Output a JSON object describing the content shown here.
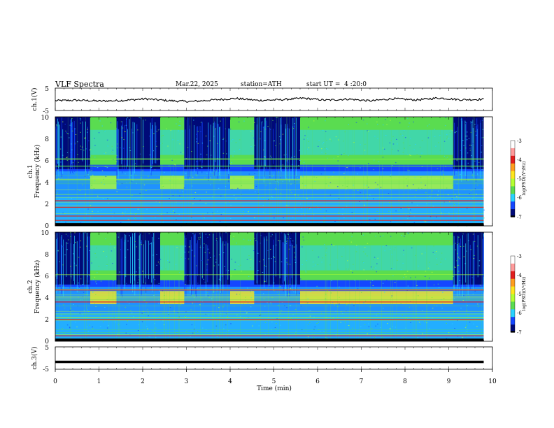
{
  "header": {
    "title": "VLF Spectra",
    "date": "Mar.22, 2025",
    "station": "station=ATH",
    "start": "start UT =  4 :20:0"
  },
  "chart_data": [
    {
      "type": "line",
      "ylabel": "ch.1(V)",
      "xlim": [
        0,
        10
      ],
      "ylim": [
        -5,
        5
      ],
      "yticks": [
        "5",
        "-5"
      ],
      "series": [
        {
          "values": [
            -0.6,
            -0.4,
            -0.8,
            -0.5,
            0.2,
            -0.6,
            -1.0,
            -0.3,
            0.4,
            -0.5,
            -0.2,
            0.5,
            -0.4,
            0.1,
            -0.7,
            0.3,
            -0.3,
            0.6,
            -0.2,
            0.0
          ]
        }
      ]
    },
    {
      "type": "heatmap",
      "ylabel": "Frequency (kHz)",
      "channel": "ch.1",
      "xlim": [
        0,
        9.8
      ],
      "ylim": [
        0,
        10
      ],
      "yticks": [
        "0",
        "2",
        "4",
        "6",
        "8",
        "10"
      ],
      "quiet_intervals_min": [
        [
          0.8,
          1.4
        ],
        [
          2.4,
          2.95
        ],
        [
          4.0,
          4.55
        ],
        [
          5.6,
          9.1
        ]
      ],
      "hot_bands_khz": [
        0.5,
        0.9,
        1.7,
        2.3
      ],
      "colorbar": {
        "label": "log(PSD)(V²/Hz)",
        "range": [
          -7,
          -3
        ],
        "ticks": [
          "-3",
          "-4",
          "-5",
          "-6",
          "-7"
        ]
      }
    },
    {
      "type": "heatmap",
      "ylabel": "Frequency (kHz)",
      "channel": "ch.2",
      "xlim": [
        0,
        9.8
      ],
      "ylim": [
        0,
        10
      ],
      "yticks": [
        "0",
        "2",
        "4",
        "6",
        "8",
        "10"
      ],
      "quiet_intervals_min": [
        [
          0.8,
          1.4
        ],
        [
          2.4,
          2.95
        ],
        [
          4.0,
          4.55
        ],
        [
          5.6,
          9.1
        ]
      ],
      "hot_bands_khz": [
        0.5,
        2.0,
        3.6,
        4.7
      ],
      "colorbar": {
        "label": "log(PSD)(V²/Hz)",
        "range": [
          -7,
          -3
        ],
        "ticks": [
          "-3",
          "-4",
          "-5",
          "-6",
          "-7"
        ]
      }
    },
    {
      "type": "line",
      "ylabel": "ch.3(V)",
      "xlim": [
        0,
        10
      ],
      "ylim": [
        -5,
        5
      ],
      "yticks": [
        "5",
        "-5"
      ],
      "series": [
        {
          "values": [
            -1.7,
            -1.7
          ]
        }
      ]
    }
  ],
  "xaxis": {
    "label": "Time (min)",
    "ticks": [
      "0",
      "1",
      "2",
      "3",
      "4",
      "5",
      "6",
      "7",
      "8",
      "9",
      "10"
    ]
  },
  "colors": {
    "dark_blue": "#000a78",
    "blue": "#1446ff",
    "cyan": "#28d2ff",
    "green": "#5adc50",
    "yellow_green": "#b4ff32",
    "yellow": "#ffe61e",
    "red": "#e11e1e"
  }
}
